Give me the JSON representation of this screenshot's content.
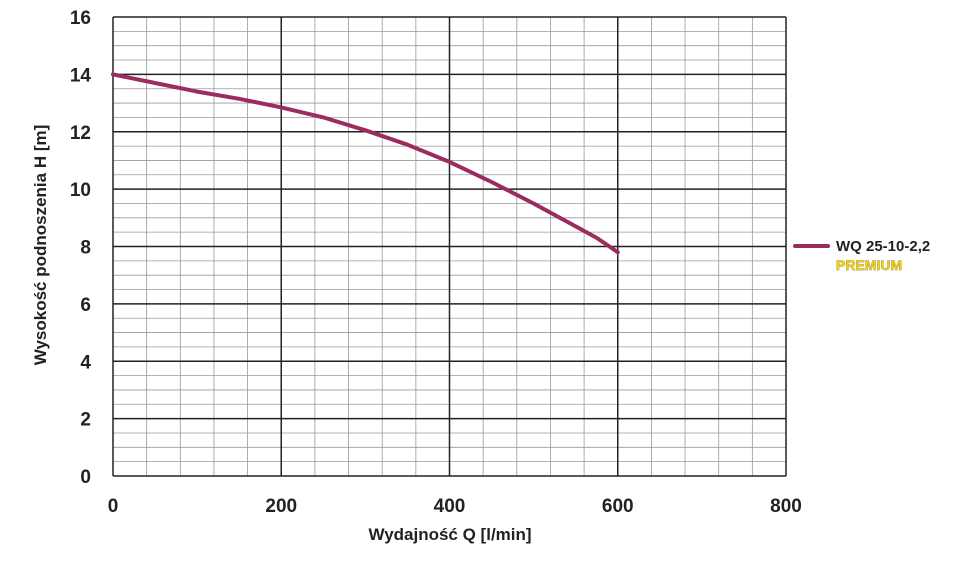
{
  "chart_data": {
    "type": "line",
    "xlabel": "Wydajność Q [l/min]",
    "ylabel": "Wysokość podnoszenia H [m]",
    "xlim": [
      0,
      800
    ],
    "ylim": [
      0,
      16
    ],
    "x_ticks": [
      0,
      200,
      400,
      600,
      800
    ],
    "y_ticks": [
      0,
      2,
      4,
      6,
      8,
      10,
      12,
      14,
      16
    ],
    "x_tick_labels": [
      "0",
      "200",
      "400",
      "600",
      "800"
    ],
    "y_tick_labels": [
      "0",
      "2",
      "4",
      "6",
      "8",
      "10",
      "12",
      "14",
      "16"
    ],
    "grid": true,
    "legend_position": "right",
    "series": [
      {
        "name": "WQ 25-10-2,2",
        "subname": "PREMIUM",
        "color": "#9b2c5e",
        "x": [
          0,
          50,
          100,
          150,
          200,
          250,
          300,
          350,
          400,
          450,
          500,
          550,
          575,
          600
        ],
        "y": [
          14.0,
          13.7,
          13.4,
          13.15,
          12.85,
          12.5,
          12.05,
          11.55,
          10.95,
          10.25,
          9.5,
          8.7,
          8.3,
          7.8
        ]
      }
    ]
  }
}
